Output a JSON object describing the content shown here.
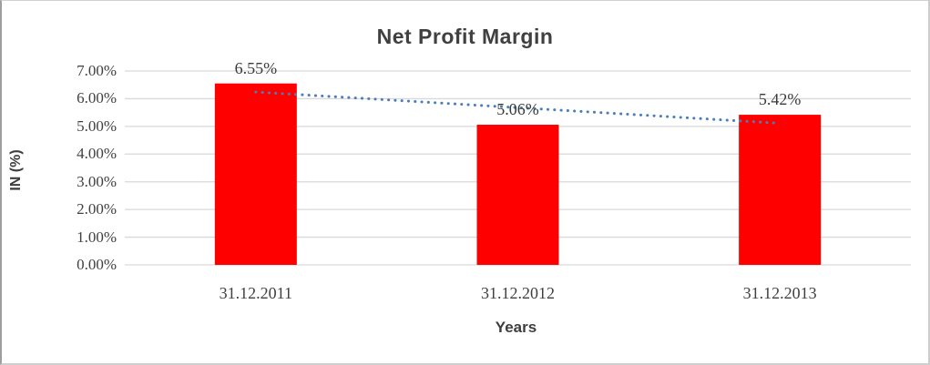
{
  "window": {
    "background": "#ffffff",
    "frame_border_color": "#9e9e9e"
  },
  "chart_data": {
    "type": "bar",
    "title": "Net Profit Margin",
    "xlabel": "Years",
    "ylabel": "IN (%)",
    "categories": [
      "31.12.2011",
      "31.12.2012",
      "31.12.2013"
    ],
    "values": [
      6.55,
      5.06,
      5.42
    ],
    "value_labels": [
      "6.55%",
      "5.06%",
      "5.42%"
    ],
    "y_ticks": [
      "0.00%",
      "1.00%",
      "2.00%",
      "3.00%",
      "4.00%",
      "5.00%",
      "6.00%",
      "7.00%"
    ],
    "y_tick_values": [
      0,
      1,
      2,
      3,
      4,
      5,
      6,
      7
    ],
    "ylim": [
      0,
      7
    ],
    "grid": "horizontal",
    "legend": "none",
    "bar_color": "#ff0000",
    "gridline_color": "#d9d9d9",
    "text_color": "#404040",
    "trendline": {
      "type": "linear",
      "style": "dotted",
      "color": "#4a7ebb"
    }
  }
}
